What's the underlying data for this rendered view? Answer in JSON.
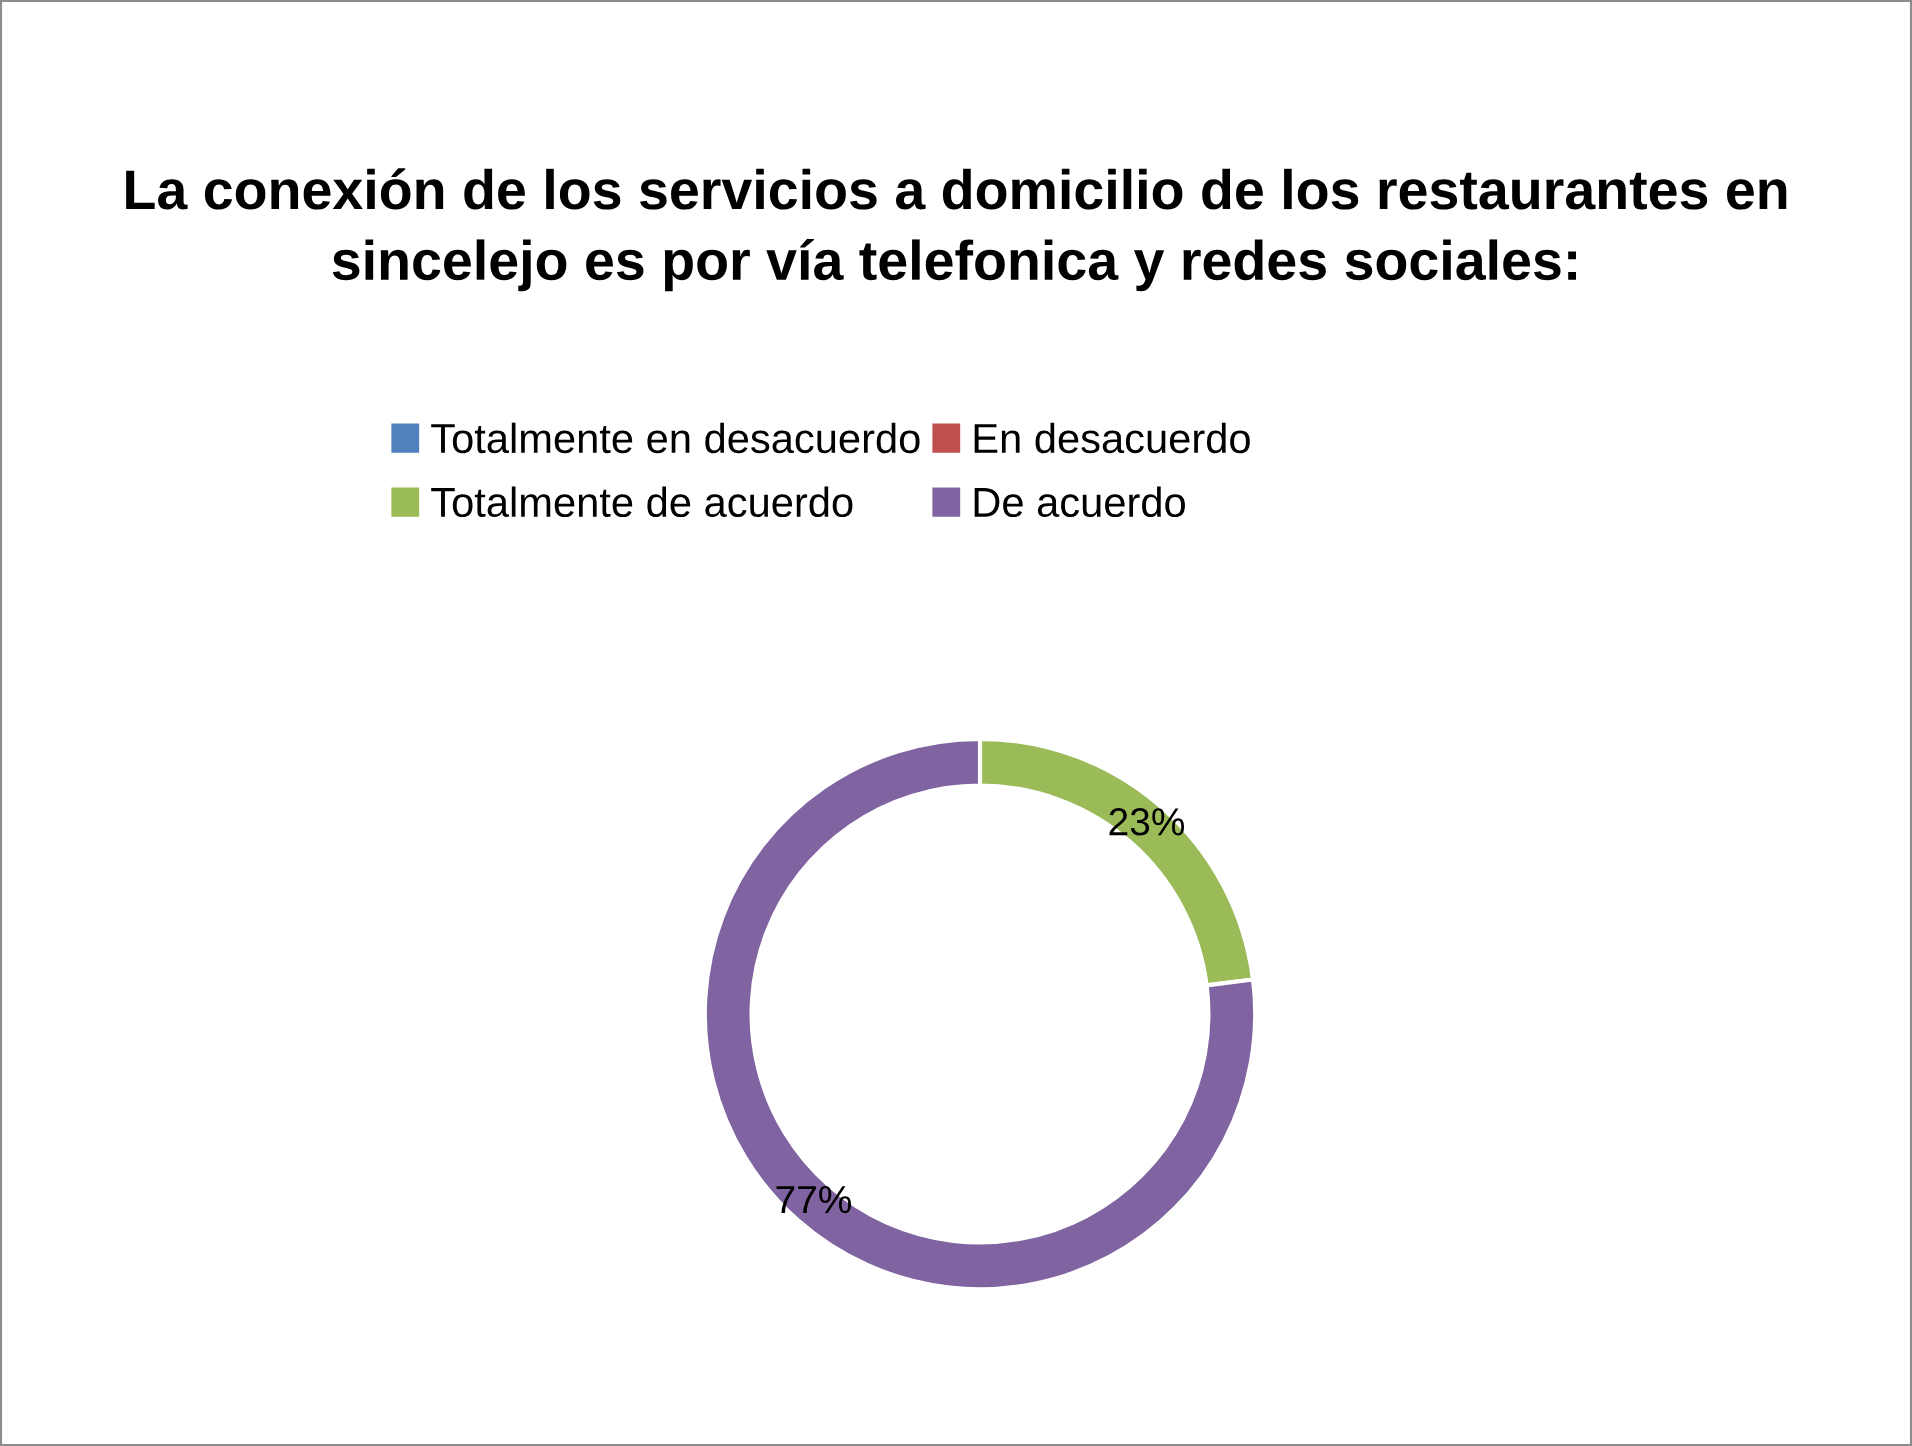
{
  "chart_data": {
    "type": "donut",
    "title": "La conexión de los servicios a domicilio de los restaurantes en sincelejo es por vía telefonica y redes sociales:",
    "categories": [
      "Totalmente en desacuerdo",
      "En desacuerdo",
      "Totalmente de acuerdo",
      "De acuerdo"
    ],
    "values": [
      0,
      0,
      23,
      77
    ],
    "colors": [
      "#4f81bd",
      "#c0504d",
      "#9bbb59",
      "#8064a2"
    ],
    "value_labels": [
      null,
      null,
      "23%",
      "77%"
    ],
    "legend": "top"
  }
}
